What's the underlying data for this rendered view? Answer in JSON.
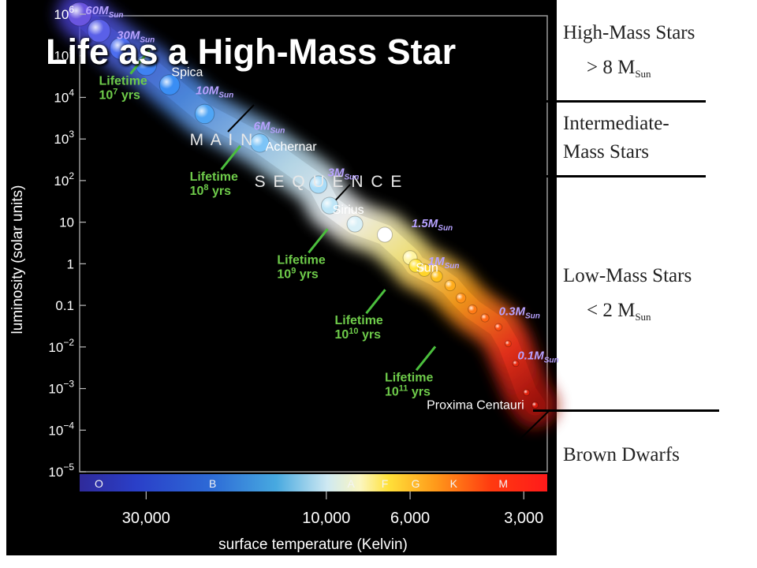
{
  "title": "Life as a High-Mass Star",
  "categories": [
    {
      "line1": "High-Mass Stars",
      "line2_prefix": "> 8 M",
      "line2_sub": "Sun"
    },
    {
      "line1": "Intermediate-",
      "line2": "Mass Stars"
    },
    {
      "line1": "Low-Mass Stars",
      "line2_prefix": "< 2 M",
      "line2_sub": "Sun"
    },
    {
      "line1": "Brown Dwarfs"
    }
  ],
  "chart_data": {
    "type": "scatter",
    "title": "",
    "xlabel": "surface temperature (Kelvin)",
    "ylabel": "luminosity (solar units)",
    "x_scale": "log-reversed",
    "y_scale": "log",
    "y_ticks": [
      {
        "value": 1000000,
        "base": "10",
        "exp": "6"
      },
      {
        "value": 100000,
        "base": "10",
        "exp": "5"
      },
      {
        "value": 10000,
        "base": "10",
        "exp": "4"
      },
      {
        "value": 1000,
        "base": "10",
        "exp": "3"
      },
      {
        "value": 100,
        "base": "10",
        "exp": "2"
      },
      {
        "value": 10,
        "base": "10",
        "exp": ""
      },
      {
        "value": 1,
        "base": "1",
        "exp": ""
      },
      {
        "value": 0.1,
        "base": "0.1",
        "exp": ""
      },
      {
        "value": 0.01,
        "base": "10",
        "exp": "−2"
      },
      {
        "value": 0.001,
        "base": "10",
        "exp": "−3"
      },
      {
        "value": 0.0001,
        "base": "10",
        "exp": "−4"
      },
      {
        "value": 1e-05,
        "base": "10",
        "exp": "−5"
      }
    ],
    "x_ticks": [
      {
        "value": 30000,
        "label": "30,000"
      },
      {
        "value": 10000,
        "label": "10,000"
      },
      {
        "value": 6000,
        "label": "6,000"
      },
      {
        "value": 3000,
        "label": "3,000"
      }
    ],
    "spectral_classes": [
      {
        "label": "O",
        "temp": 40000
      },
      {
        "label": "B",
        "temp": 20000
      },
      {
        "label": "A",
        "temp": 8600
      },
      {
        "label": "F",
        "temp": 7000
      },
      {
        "label": "G",
        "temp": 5800
      },
      {
        "label": "K",
        "temp": 4600
      },
      {
        "label": "M",
        "temp": 3400
      }
    ],
    "band_labels": [
      {
        "text": "M A I N",
        "temp": 23000,
        "lum": 1000
      },
      {
        "text": "S E Q U E N C E",
        "temp": 15500,
        "lum": 100
      }
    ],
    "stars": [
      {
        "temp": 45000,
        "lum": 1000000,
        "color": "#6a55e0"
      },
      {
        "temp": 40000,
        "lum": 400000,
        "color": "#5a60e8"
      },
      {
        "temp": 35000,
        "lum": 150000,
        "color": "#4d6ef0"
      },
      {
        "temp": 30000,
        "lum": 60000,
        "color": "#3f82f2"
      },
      {
        "temp": 26000,
        "lum": 20000,
        "color": "#3a8ef4"
      },
      {
        "temp": 21000,
        "lum": 4000,
        "color": "#4fa5f5"
      },
      {
        "temp": 15000,
        "lum": 800,
        "color": "#7cc4f7"
      },
      {
        "temp": 10500,
        "lum": 80,
        "color": "#a9dcf8"
      },
      {
        "temp": 9800,
        "lum": 25,
        "color": "#bfe6f7"
      },
      {
        "temp": 8400,
        "lum": 9,
        "color": "#d9f0f7"
      },
      {
        "temp": 7000,
        "lum": 5,
        "color": "#ffffff"
      },
      {
        "temp": 6000,
        "lum": 1.4,
        "color": "#fff4a0"
      },
      {
        "temp": 5800,
        "lum": 0.9,
        "color": "#ffe33a"
      },
      {
        "temp": 5500,
        "lum": 0.7,
        "color": "#ffd42a"
      },
      {
        "temp": 5100,
        "lum": 0.5,
        "color": "#ffc21e"
      },
      {
        "temp": 4700,
        "lum": 0.3,
        "color": "#ffac1c"
      },
      {
        "temp": 4400,
        "lum": 0.15,
        "color": "#ff9018"
      },
      {
        "temp": 4100,
        "lum": 0.08,
        "color": "#ff7a16"
      },
      {
        "temp": 3800,
        "lum": 0.05,
        "color": "#ff6614"
      },
      {
        "temp": 3500,
        "lum": 0.03,
        "color": "#ff4e12"
      },
      {
        "temp": 3300,
        "lum": 0.012,
        "color": "#f33a10"
      },
      {
        "temp": 3150,
        "lum": 0.004,
        "color": "#e8280e"
      },
      {
        "temp": 2950,
        "lum": 0.0008,
        "color": "#e0200c"
      },
      {
        "temp": 2800,
        "lum": 0.0004,
        "color": "#d8180a"
      }
    ],
    "mass_labels": [
      {
        "value": "60",
        "temp": 46000,
        "lum": 1200000
      },
      {
        "value": "30",
        "temp": 38000,
        "lum": 300000
      },
      {
        "value": "10",
        "temp": 23500,
        "lum": 14000
      },
      {
        "value": "6",
        "temp": 16500,
        "lum": 2000
      },
      {
        "value": "3",
        "temp": 10500,
        "lum": 150
      },
      {
        "value": "1.5",
        "temp": 6300,
        "lum": 9
      },
      {
        "value": "1",
        "temp": 5700,
        "lum": 1.1
      },
      {
        "value": "0.3",
        "temp": 3700,
        "lum": 0.07
      },
      {
        "value": "0.1",
        "temp": 3300,
        "lum": 0.006
      }
    ],
    "mass_symbol": "M",
    "mass_subscript": "Sun",
    "named_stars": [
      {
        "name": "Spica",
        "temp": 27500,
        "lum": 40000
      },
      {
        "name": "Achernar",
        "temp": 15500,
        "lum": 650
      },
      {
        "name": "Sirius",
        "temp": 10300,
        "lum": 20
      },
      {
        "name": "Sun",
        "temp": 6200,
        "lum": 0.8
      },
      {
        "name": "Proxima Centauri",
        "temp": 5800,
        "lum": 0.0004
      }
    ],
    "lifetimes": [
      {
        "line1": "Lifetime",
        "base": "10",
        "exp": "7",
        "unit": "yrs",
        "temp": 40000,
        "lum": 20000
      },
      {
        "line1": "Lifetime",
        "base": "10",
        "exp": "8",
        "unit": "yrs",
        "temp": 23000,
        "lum": 100
      },
      {
        "line1": "Lifetime",
        "base": "10",
        "exp": "9",
        "unit": "yrs",
        "temp": 13500,
        "lum": 1
      },
      {
        "line1": "Lifetime",
        "base": "10",
        "exp": "10",
        "unit": "yrs",
        "temp": 9500,
        "lum": 0.035
      },
      {
        "line1": "Lifetime",
        "base": "10",
        "exp": "11",
        "unit": "yrs",
        "temp": 7000,
        "lum": 0.0015
      }
    ]
  }
}
